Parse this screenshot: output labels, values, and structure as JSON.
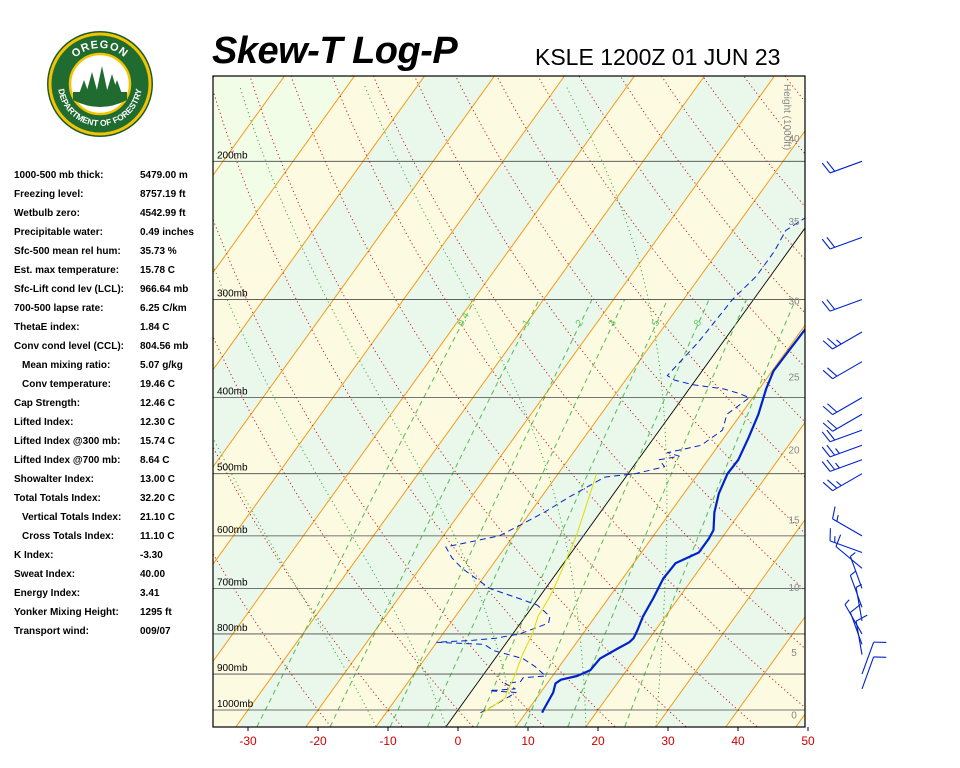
{
  "logo": {
    "top_text": "OREGON",
    "bottom_text": "DEPARTMENT OF FORESTRY"
  },
  "header": {
    "title": "Skew-T Log-P",
    "station": "KSLE 1200Z 01 JUN 23"
  },
  "indices": [
    {
      "label": "1000-500 mb thick:",
      "value": "5479.00 m"
    },
    {
      "label": "Freezing level:",
      "value": "8757.19 ft"
    },
    {
      "label": "Wetbulb zero:",
      "value": "4542.99 ft"
    },
    {
      "label": "Precipitable water:",
      "value": "0.49 inches"
    },
    {
      "label": "Sfc-500 mean rel hum:",
      "value": "35.73 %"
    },
    {
      "label": "Est. max temperature:",
      "value": "15.78 C"
    },
    {
      "label": "Sfc-Lift cond lev (LCL):",
      "value": "966.64 mb"
    },
    {
      "label": "700-500 lapse rate:",
      "value": "6.25 C/km"
    },
    {
      "label": "ThetaE index:",
      "value": "1.84 C"
    },
    {
      "label": "Conv cond level (CCL):",
      "value": "804.56 mb"
    },
    {
      "label": "Mean mixing ratio:",
      "value": "5.07 g/kg",
      "indent": true
    },
    {
      "label": "Conv temperature:",
      "value": "19.46 C",
      "indent": true
    },
    {
      "label": "Cap Strength:",
      "value": "12.46 C"
    },
    {
      "label": "Lifted Index:",
      "value": "12.30 C"
    },
    {
      "label": "Lifted Index @300 mb:",
      "value": "15.74 C"
    },
    {
      "label": "Lifted Index @700 mb:",
      "value": "8.64 C"
    },
    {
      "label": "Showalter Index:",
      "value": "13.00 C"
    },
    {
      "label": "Total Totals Index:",
      "value": "32.20 C"
    },
    {
      "label": "Vertical Totals Index:",
      "value": "21.10 C",
      "indent": true
    },
    {
      "label": "Cross Totals Index:",
      "value": "11.10 C",
      "indent": true
    },
    {
      "label": "K Index:",
      "value": "-3.30"
    },
    {
      "label": "Sweat Index:",
      "value": "40.00"
    },
    {
      "label": "Energy Index:",
      "value": "3.41"
    },
    {
      "label": "Yonker Mixing Height:",
      "value": "1295 ft"
    },
    {
      "label": "Transport wind:",
      "value": "009/07"
    }
  ],
  "chart_data": {
    "type": "line",
    "title": "Skew-T Log-P",
    "subtitle": "KSLE 1200Z 01 JUN 23",
    "x_axis": {
      "range": [
        -30,
        50
      ],
      "ticks": [
        -30,
        -20,
        -10,
        0,
        10,
        20,
        30,
        40,
        50
      ]
    },
    "pressure_levels": [
      {
        "p": 200,
        "label": "200mb"
      },
      {
        "p": 300,
        "label": "300mb"
      },
      {
        "p": 400,
        "label": "400mb"
      },
      {
        "p": 500,
        "label": "500mb"
      },
      {
        "p": 600,
        "label": "600mb"
      },
      {
        "p": 700,
        "label": "700mb"
      },
      {
        "p": 800,
        "label": "800mb"
      },
      {
        "p": 900,
        "label": "900mb"
      },
      {
        "p": 1000,
        "label": "1000mb"
      }
    ],
    "height_axis": {
      "label": "Height (1000ft)",
      "ticks": [
        0,
        5,
        10,
        15,
        20,
        25,
        30,
        35,
        40,
        45,
        50
      ]
    },
    "mixing_ratio_labels": [
      "0.4",
      "1",
      "2",
      "3",
      "5",
      "8"
    ],
    "series": [
      {
        "key": "temperature",
        "color": "#0022cc",
        "style": "solid",
        "points": [
          [
            1008,
            12.3
          ],
          [
            1000,
            12.2
          ],
          [
            950,
            11.8
          ],
          [
            925,
            11.2
          ],
          [
            915,
            11.6
          ],
          [
            905,
            13.5
          ],
          [
            890,
            14.8
          ],
          [
            860,
            15.0
          ],
          [
            835,
            16.5
          ],
          [
            820,
            17.5
          ],
          [
            810,
            17.7
          ],
          [
            790,
            17.4
          ],
          [
            760,
            16.8
          ],
          [
            720,
            16.4
          ],
          [
            680,
            15.8
          ],
          [
            650,
            16.0
          ],
          [
            630,
            18.2
          ],
          [
            605,
            18.2
          ],
          [
            590,
            18.0
          ],
          [
            560,
            16.3
          ],
          [
            530,
            15.0
          ],
          [
            500,
            14.2
          ],
          [
            480,
            14.3
          ],
          [
            450,
            13.5
          ],
          [
            420,
            12.5
          ],
          [
            390,
            11.0
          ],
          [
            370,
            10.2
          ],
          [
            350,
            10.3
          ],
          [
            320,
            10.5
          ],
          [
            300,
            10.7
          ],
          [
            290,
            11.0
          ],
          [
            270,
            13.0
          ],
          [
            260,
            13.5
          ],
          [
            250,
            16.5
          ],
          [
            230,
            20.5
          ],
          [
            215,
            25.0
          ],
          [
            200,
            30.0
          ],
          [
            185,
            36.0
          ],
          [
            170,
            43.0
          ],
          [
            165,
            45.5
          ]
        ]
      },
      {
        "key": "dewpoint",
        "color": "#0022cc",
        "style": "dashed",
        "points": [
          [
            1008,
            3.5
          ],
          [
            1000,
            4.0
          ],
          [
            950,
            6.5
          ],
          [
            945,
            2.5
          ],
          [
            940,
            6.0
          ],
          [
            925,
            4.0
          ],
          [
            920,
            6.0
          ],
          [
            910,
            6.0
          ],
          [
            905,
            9.0
          ],
          [
            880,
            6.5
          ],
          [
            860,
            4.0
          ],
          [
            840,
            -1.0
          ],
          [
            825,
            -3.0
          ],
          [
            820,
            -10.0
          ],
          [
            815,
            -5.0
          ],
          [
            810,
            -2.0
          ],
          [
            800,
            1.0
          ],
          [
            775,
            4.0
          ],
          [
            760,
            3.5
          ],
          [
            735,
            0.5
          ],
          [
            720,
            -3.0
          ],
          [
            700,
            -8.0
          ],
          [
            660,
            -14.0
          ],
          [
            640,
            -16.5
          ],
          [
            620,
            -18.5
          ],
          [
            600,
            -12.0
          ],
          [
            580,
            -10.0
          ],
          [
            560,
            -8.0
          ],
          [
            535,
            -6.0
          ],
          [
            515,
            -4.0
          ],
          [
            505,
            -3.0
          ],
          [
            500,
            1.0
          ],
          [
            490,
            4.5
          ],
          [
            480,
            3.0
          ],
          [
            475,
            5.5
          ],
          [
            470,
            3.5
          ],
          [
            460,
            7.5
          ],
          [
            440,
            9.0
          ],
          [
            420,
            8.0
          ],
          [
            400,
            9.5
          ],
          [
            395,
            7.5
          ],
          [
            390,
            5.0
          ],
          [
            385,
            0.0
          ],
          [
            380,
            -3.0
          ],
          [
            375,
            -4.5
          ],
          [
            340,
            -3.5
          ],
          [
            300,
            -3.0
          ],
          [
            280,
            -2.0
          ],
          [
            260,
            -2.0
          ],
          [
            245,
            -2.5
          ],
          [
            230,
            0.0
          ],
          [
            220,
            0.5
          ],
          [
            210,
            1.5
          ],
          [
            200,
            3.0
          ],
          [
            190,
            7.5
          ],
          [
            180,
            12.0
          ],
          [
            170,
            16.0
          ],
          [
            165,
            19.0
          ]
        ]
      },
      {
        "key": "parcel",
        "color": "#dddd00",
        "style": "solid",
        "points": [
          [
            1008,
            3.8
          ],
          [
            990,
            4.5
          ],
          [
            966,
            5.5
          ],
          [
            950,
            5.2
          ],
          [
            900,
            4.5
          ],
          [
            850,
            3.5
          ],
          [
            800,
            2.8
          ],
          [
            760,
            1.8
          ],
          [
            720,
            1.5
          ],
          [
            700,
            1.2
          ],
          [
            600,
            -1.0
          ],
          [
            500,
            -4.5
          ]
        ]
      }
    ],
    "wind_barbs": [
      {
        "p": 940,
        "dir": 20,
        "kt": 10
      },
      {
        "p": 900,
        "dir": 20,
        "kt": 10
      },
      {
        "p": 850,
        "dir": 350,
        "kt": 10
      },
      {
        "p": 825,
        "dir": 340,
        "kt": 10
      },
      {
        "p": 800,
        "dir": 330,
        "kt": 5
      },
      {
        "p": 770,
        "dir": 350,
        "kt": 5
      },
      {
        "p": 740,
        "dir": 340,
        "kt": 5
      },
      {
        "p": 700,
        "dir": 340,
        "kt": 5
      },
      {
        "p": 660,
        "dir": 310,
        "kt": 10
      },
      {
        "p": 630,
        "dir": 290,
        "kt": 15
      },
      {
        "p": 600,
        "dir": 300,
        "kt": 15
      },
      {
        "p": 500,
        "dir": 240,
        "kt": 25
      },
      {
        "p": 480,
        "dir": 250,
        "kt": 25
      },
      {
        "p": 460,
        "dir": 250,
        "kt": 25
      },
      {
        "p": 440,
        "dir": 250,
        "kt": 20
      },
      {
        "p": 420,
        "dir": 240,
        "kt": 20
      },
      {
        "p": 400,
        "dir": 240,
        "kt": 20
      },
      {
        "p": 360,
        "dir": 240,
        "kt": 20
      },
      {
        "p": 330,
        "dir": 240,
        "kt": 25
      },
      {
        "p": 300,
        "dir": 250,
        "kt": 20
      },
      {
        "p": 250,
        "dir": 250,
        "kt": 20
      },
      {
        "p": 200,
        "dir": 250,
        "kt": 20
      },
      {
        "p": 150,
        "dir": 250,
        "kt": 20
      }
    ]
  }
}
